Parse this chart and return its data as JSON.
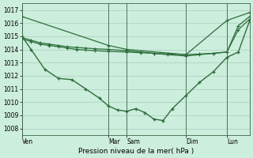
{
  "background_color": "#cceedd",
  "line_color": "#2d6e3a",
  "grid_color": "#aaccbb",
  "xlabel": "Pression niveau de la mer( hPa )",
  "ylim": [
    1007.5,
    1017.5
  ],
  "yticks": [
    1008,
    1009,
    1010,
    1011,
    1012,
    1013,
    1014,
    1015,
    1016,
    1017
  ],
  "xlim": [
    0,
    1.0
  ],
  "xtick_positions": [
    0.0,
    0.38,
    0.46,
    0.72,
    0.9
  ],
  "xtick_labels": [
    "Ven",
    "Mar",
    "Sam",
    "Dim",
    "Lun"
  ],
  "vline_positions": [
    0.0,
    0.38,
    0.46,
    0.72,
    0.9
  ],
  "line1_x": [
    0.0,
    0.38,
    0.46,
    0.72,
    0.9,
    1.0
  ],
  "line1_y": [
    1016.5,
    1014.3,
    1014.0,
    1013.6,
    1016.2,
    1016.8
  ],
  "line2_x": [
    0.0,
    0.04,
    0.08,
    0.12,
    0.16,
    0.2,
    0.24,
    0.28,
    0.32,
    0.38,
    0.46,
    0.52,
    0.58,
    0.64,
    0.72,
    0.78,
    0.84,
    0.9,
    0.95,
    1.0
  ],
  "line2_y": [
    1014.9,
    1014.7,
    1014.5,
    1014.4,
    1014.3,
    1014.2,
    1014.15,
    1014.1,
    1014.05,
    1014.0,
    1013.9,
    1013.8,
    1013.7,
    1013.6,
    1013.5,
    1013.6,
    1013.7,
    1013.8,
    1015.8,
    1016.5
  ],
  "line3_x": [
    0.0,
    0.04,
    0.08,
    0.12,
    0.16,
    0.2,
    0.24,
    0.28,
    0.32,
    0.38,
    0.46,
    0.52,
    0.58,
    0.64,
    0.72,
    0.78,
    0.84,
    0.9,
    0.95,
    1.0
  ],
  "line3_y": [
    1014.8,
    1014.6,
    1014.4,
    1014.3,
    1014.2,
    1014.1,
    1014.0,
    1013.95,
    1013.9,
    1013.85,
    1013.8,
    1013.75,
    1013.7,
    1013.65,
    1013.6,
    1013.65,
    1013.7,
    1013.8,
    1015.5,
    1016.3
  ],
  "line4_x": [
    0.0,
    0.04,
    0.1,
    0.16,
    0.22,
    0.28,
    0.34,
    0.38,
    0.42,
    0.46,
    0.5,
    0.54,
    0.58,
    0.62,
    0.66,
    0.72,
    0.78,
    0.84,
    0.9,
    0.95,
    1.0
  ],
  "line4_y": [
    1015.0,
    1014.0,
    1012.5,
    1011.8,
    1011.7,
    1011.0,
    1010.3,
    1009.7,
    1009.4,
    1009.3,
    1009.5,
    1009.2,
    1008.7,
    1008.6,
    1009.5,
    1010.5,
    1011.5,
    1012.3,
    1013.4,
    1013.8,
    1016.2
  ]
}
